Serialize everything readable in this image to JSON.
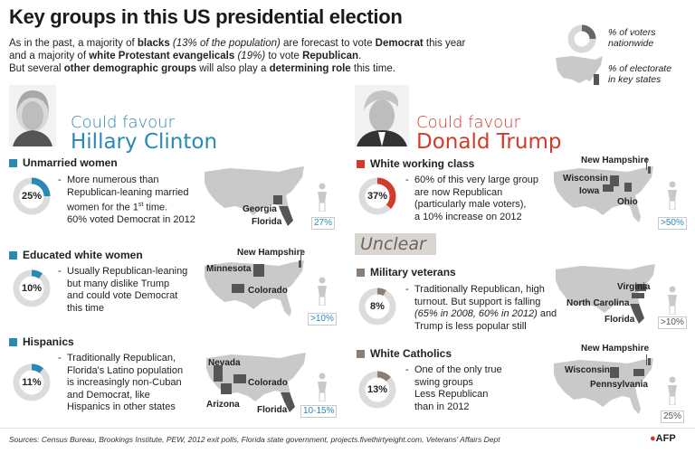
{
  "header": {
    "title": "Key groups in this US presidential election",
    "intro_line1_parts": [
      "As in the past, a majority of ",
      "blacks",
      " (13% of the population)",
      " are forecast to vote ",
      "Democrat",
      " this year"
    ],
    "intro_line2_parts": [
      "and a majority of ",
      "white Protestant evangelicals",
      " (19%)",
      " to vote ",
      "Republican",
      "."
    ],
    "intro_line3_parts": [
      "But several ",
      "other demographic groups",
      " will also play a ",
      "determining role",
      " this time."
    ]
  },
  "legend": {
    "donut_label_1": "% of voters",
    "donut_label_2": "nationwide",
    "map_label_1": "% of electorate",
    "map_label_2": "in key states"
  },
  "clinton": {
    "fav_small": "Could favour",
    "fav_big": "Hillary Clinton",
    "groups": [
      {
        "title": "Unmarried women",
        "donut": "25%",
        "donut_fraction": 0.25,
        "lines": [
          "More numerous than",
          "Republican-leaning married",
          "women for the 1st time.",
          "60% voted Democrat in 2012"
        ],
        "states": [
          "Georgia",
          "Florida"
        ],
        "pct": "27%"
      },
      {
        "title": "Educated white women",
        "donut": "10%",
        "donut_fraction": 0.1,
        "lines": [
          "Usually Republican-leaning",
          "but many dislike Trump",
          "and could vote Democrat",
          "this time"
        ],
        "states": [
          "New Hampshire",
          "Minnesota",
          "Colorado"
        ],
        "pct": ">10%"
      },
      {
        "title": "Hispanics",
        "donut": "11%",
        "donut_fraction": 0.11,
        "lines": [
          "Traditionally Republican,",
          "Florida's Latino population",
          "is increasingly non-Cuban",
          "and Democrat, like",
          "Hispanics in other states"
        ],
        "states": [
          "Nevada",
          "Colorado",
          "Arizona",
          "Florida"
        ],
        "pct": "10-15%"
      }
    ]
  },
  "trump": {
    "fav_small": "Could favour",
    "fav_big": "Donald Trump",
    "groups": [
      {
        "title": "White working class",
        "donut": "37%",
        "donut_fraction": 0.37,
        "lines": [
          "60% of this very large group",
          "are now Republican",
          "(particularly male voters),",
          "a 10% increase on 2012"
        ],
        "states": [
          "New Hampshire",
          "Wisconsin",
          "Iowa",
          "Ohio"
        ],
        "pct": ">50%"
      }
    ]
  },
  "unclear": {
    "label": "Unclear",
    "groups": [
      {
        "title": "Military veterans",
        "donut": "8%",
        "donut_fraction": 0.08,
        "lines": [
          "Traditionally Republican, high",
          "turnout. But support is falling",
          "(65% in 2008, 60% in 2012) and",
          "Trump is less popular still"
        ],
        "states": [
          "Virginia",
          "North Carolina",
          "Florida"
        ],
        "pct": ">10%"
      },
      {
        "title": "White Catholics",
        "donut": "13%",
        "donut_fraction": 0.13,
        "lines": [
          "One of the only true",
          "swing groups",
          "Less Republican",
          "than in 2012"
        ],
        "states": [
          "New Hampshire",
          "Wisconsin",
          "Pennsylvania"
        ],
        "pct": "25%"
      }
    ]
  },
  "footer": {
    "sources": "Sources: Census Bureau, Brookings Institute, PEW, 2012 exit polls, Florida state government, projects.fivethirtyeight.com, Veterans' Affairs Dept",
    "credit": "AFP"
  },
  "colors": {
    "clinton_blue": "#2a88b4",
    "trump_red": "#d23a2c",
    "unclear_gray": "#8a7f77",
    "map_gray": "#c9c9c9",
    "map_highlight": "#555555"
  }
}
